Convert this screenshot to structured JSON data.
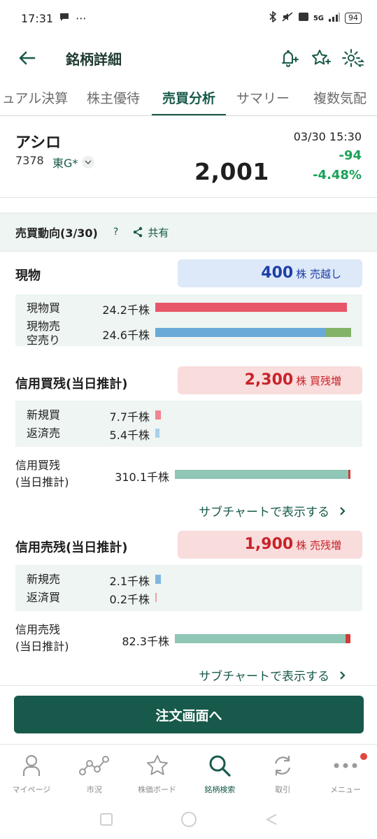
{
  "status_bar": {
    "time": "17:31",
    "battery": "94",
    "network": "5G"
  },
  "app_bar": {
    "title": "銘柄詳細"
  },
  "tabs": [
    "ュアル決算",
    "株主優待",
    "売買分析",
    "サマリー",
    "複数気配"
  ],
  "stock": {
    "name": "アシロ",
    "code": "7378",
    "market": "東G*",
    "price": "2,001",
    "time": "03/30 15:30",
    "change": "-94",
    "change_pct": "-4.48%"
  },
  "section": {
    "title": "売買動向(3/30)",
    "help": "?",
    "share": "共有"
  },
  "genbutsu": {
    "title": "現物",
    "pill_num": "400",
    "pill_unit": "株 売越し",
    "buy_label": "現物買",
    "buy_value": "24.2千株",
    "sell_label_1": "現物売",
    "sell_label_2": "空売り",
    "sell_value": "24.6千株",
    "buy_fraction": 0.98,
    "sell_fraction": 0.87,
    "short_fraction": 0.13
  },
  "margin_buy": {
    "title": "信用買残(当日推計)",
    "pill_num": "2,300",
    "pill_unit": "株 買残増",
    "new_label": "新規買",
    "new_value": "7.7千株",
    "repay_label": "返済売",
    "repay_value": "5.4千株",
    "balance_label_1": "信用買残",
    "balance_label_2": "(当日推計)",
    "balance_value": "310.1千株",
    "link": "サブチャートで表示する"
  },
  "margin_sell": {
    "title": "信用売残(当日推計)",
    "pill_num": "1,900",
    "pill_unit": "株 売残増",
    "new_label": "新規売",
    "new_value": "2.1千株",
    "repay_label": "返済買",
    "repay_value": "0.2千株",
    "balance_label_1": "信用売残",
    "balance_label_2": "(当日推計)",
    "balance_value": "82.3千株",
    "link": "サブチャートで表示する"
  },
  "order_button": "注文画面へ",
  "bottom_nav": [
    {
      "label": "マイページ",
      "icon": "person-icon"
    },
    {
      "label": "市況",
      "icon": "market-chart-icon"
    },
    {
      "label": "株価ボード",
      "icon": "star-icon"
    },
    {
      "label": "銘柄検索",
      "icon": "search-icon"
    },
    {
      "label": "取引",
      "icon": "refresh-icon"
    },
    {
      "label": "メニュー",
      "icon": "more-icon"
    }
  ],
  "colors": {
    "brand": "#17594a",
    "buy_red": "#e8566a",
    "sell_blue": "#6aaad8",
    "short_green": "#82b366",
    "balance_teal": "#8fc6b6",
    "down_green": "#1aa15a"
  }
}
